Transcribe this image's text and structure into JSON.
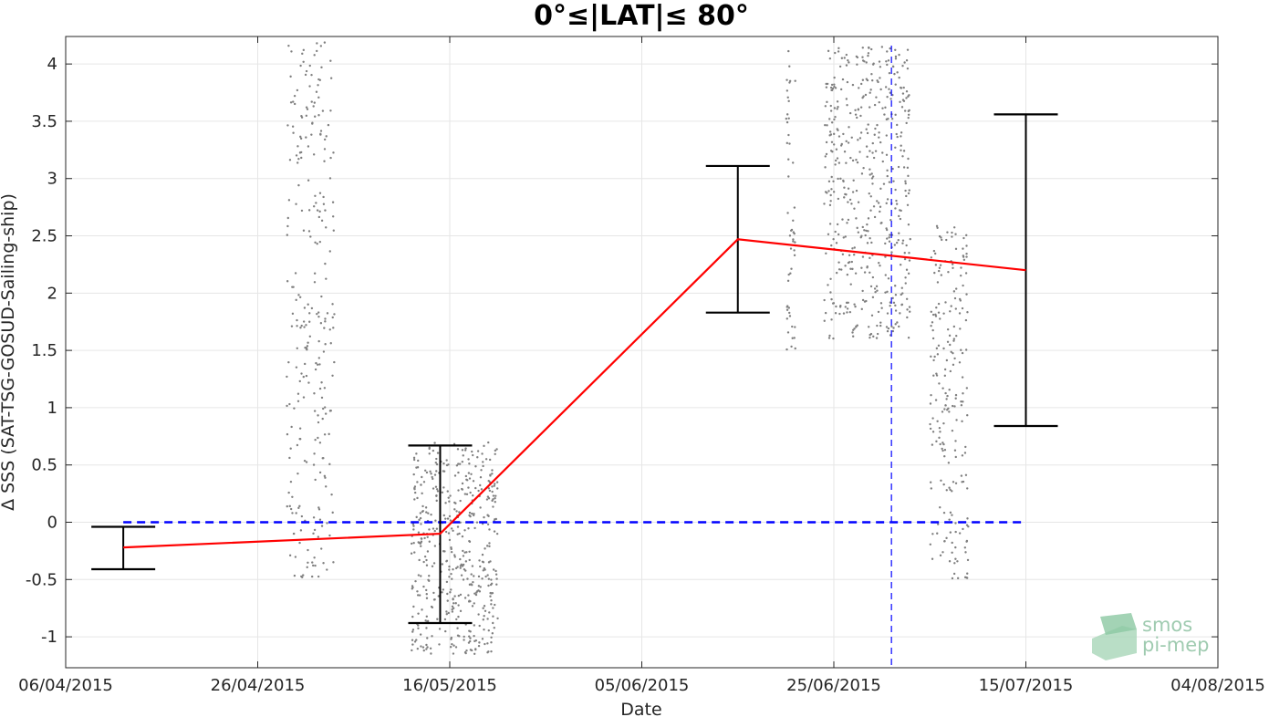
{
  "chart_data": {
    "type": "line",
    "title": "0°≤|LAT|≤ 80°",
    "xlabel": "Date",
    "ylabel": "Δ SSS (SAT-TSG-GOSUD-Sailing-ship)",
    "x_ticks": [
      "06/04/2015",
      "26/04/2015",
      "16/05/2015",
      "05/06/2015",
      "25/06/2015",
      "15/07/2015",
      "04/08/2015"
    ],
    "y_ticks": [
      "-1",
      "-0.5",
      "0",
      "0.5",
      "1",
      "1.5",
      "2",
      "2.5",
      "3",
      "3.5",
      "4"
    ],
    "xlim": [
      "06/04/2015",
      "04/08/2015"
    ],
    "ylim": [
      -1.27,
      4.24
    ],
    "grid": true,
    "mean_series": {
      "color": "#ff0000",
      "x": [
        "12/04/2015",
        "15/05/2015",
        "15/06/2015",
        "15/07/2015"
      ],
      "y": [
        -0.22,
        -0.1,
        2.47,
        2.2
      ],
      "err_low": [
        -0.41,
        -0.88,
        1.83,
        0.84
      ],
      "err_high": [
        -0.04,
        0.67,
        3.11,
        3.56
      ]
    },
    "zero_line": {
      "color": "#0000ff",
      "y": 0,
      "x_start": "12/04/2015",
      "x_end": "15/07/2015"
    },
    "vertical_line": {
      "color": "#0000ff",
      "x": "01/07/2015"
    },
    "scatter_clusters": [
      {
        "x_start": "29/04/2015",
        "x_end": "04/05/2015",
        "y_min": -0.5,
        "y_max": 4.2
      },
      {
        "x_start": "12/05/2015",
        "x_end": "21/05/2015",
        "y_min": -1.15,
        "y_max": 0.7
      },
      {
        "x_start": "20/06/2015",
        "x_end": "21/06/2015",
        "y_min": 1.5,
        "y_max": 4.2
      },
      {
        "x_start": "24/06/2015",
        "x_end": "03/07/2015",
        "y_min": 1.6,
        "y_max": 4.15
      },
      {
        "x_start": "05/07/2015",
        "x_end": "09/07/2015",
        "y_min": -0.5,
        "y_max": 2.6
      }
    ],
    "scatter_color": "#7f7f7f"
  },
  "logo": {
    "line1": "smos",
    "line2": "pi-mep"
  }
}
